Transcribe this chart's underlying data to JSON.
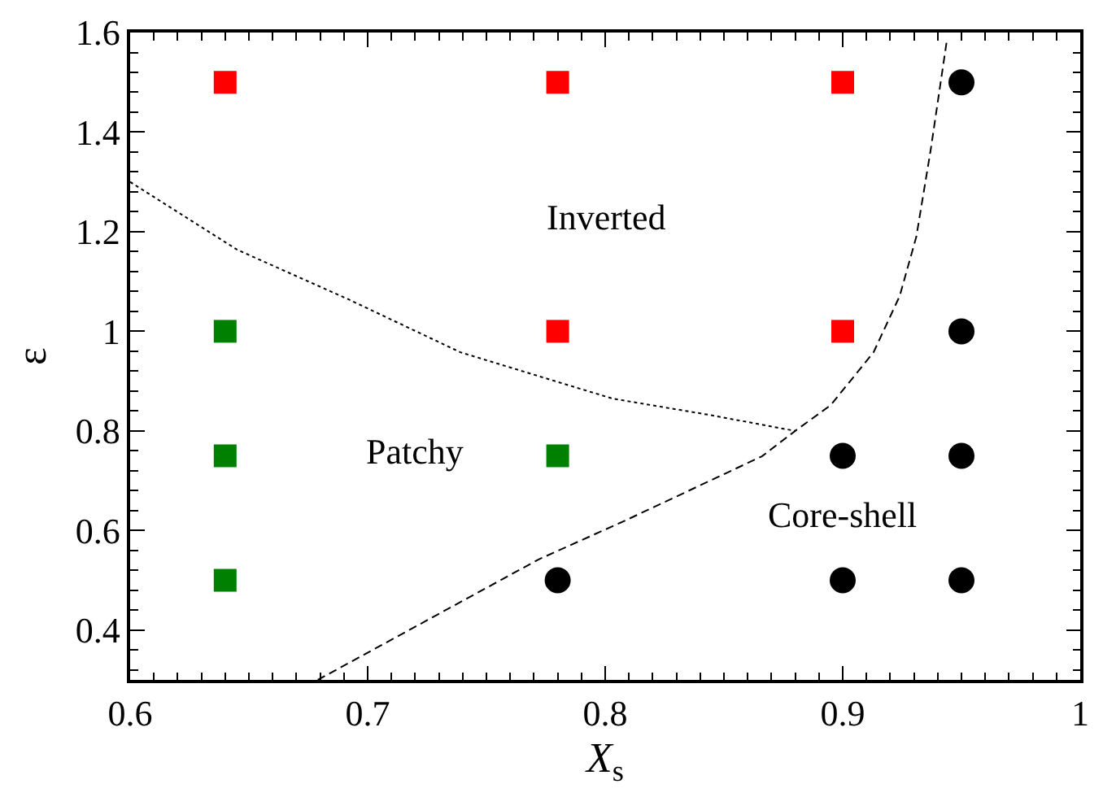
{
  "chart_data": {
    "type": "scatter",
    "xlabel": "X$_{s}$",
    "ylabel": "ε",
    "xlim": [
      0.6,
      1.0
    ],
    "xticks": [
      0.6,
      0.7,
      0.8,
      0.9,
      {
        "value": 1.0,
        "label": "1"
      }
    ],
    "ylim": [
      0.3,
      1.6
    ],
    "yticks": [
      0.4,
      0.6,
      0.8,
      {
        "value": 1.0,
        "label": "1"
      },
      1.2,
      1.4,
      1.6
    ],
    "series": [
      {
        "marker": "square",
        "color": "#ff0000",
        "x": [
          0.64,
          0.78,
          0.9,
          0.78,
          0.9
        ],
        "values": [
          1.5,
          1.5,
          1.5,
          1.0,
          1.0
        ]
      },
      {
        "marker": "square",
        "color": "#008000",
        "x": [
          0.64,
          0.64,
          0.64,
          0.78
        ],
        "values": [
          1.0,
          0.75,
          0.5,
          0.75
        ]
      },
      {
        "marker": "circle",
        "color": "#000000",
        "x": [
          0.95,
          0.95,
          0.9,
          0.95,
          0.78,
          0.9,
          0.95
        ],
        "values": [
          1.5,
          1.0,
          0.75,
          0.75,
          0.5,
          0.5,
          0.5
        ]
      },
      {
        "type": "line",
        "line_style": "dotted",
        "marker": "none",
        "color": "#000000",
        "x": [
          0.6,
          0.645,
          0.692,
          0.739,
          0.803,
          0.844,
          0.88
        ],
        "values": [
          1.3,
          1.164,
          1.064,
          0.958,
          0.865,
          0.832,
          0.8
        ]
      },
      {
        "type": "line",
        "line_style": "dashed",
        "marker": "none",
        "color": "#000000",
        "x": [
          0.679,
          0.772,
          0.808,
          0.866,
          0.88,
          0.895,
          0.913,
          0.924,
          0.931,
          0.937,
          0.944
        ],
        "values": [
          0.3,
          0.542,
          0.619,
          0.749,
          0.8,
          0.852,
          0.958,
          1.071,
          1.19,
          1.363,
          1.589
        ]
      }
    ],
    "annotations": [
      "Inverted",
      "Patchy",
      "Core-shell"
    ]
  }
}
